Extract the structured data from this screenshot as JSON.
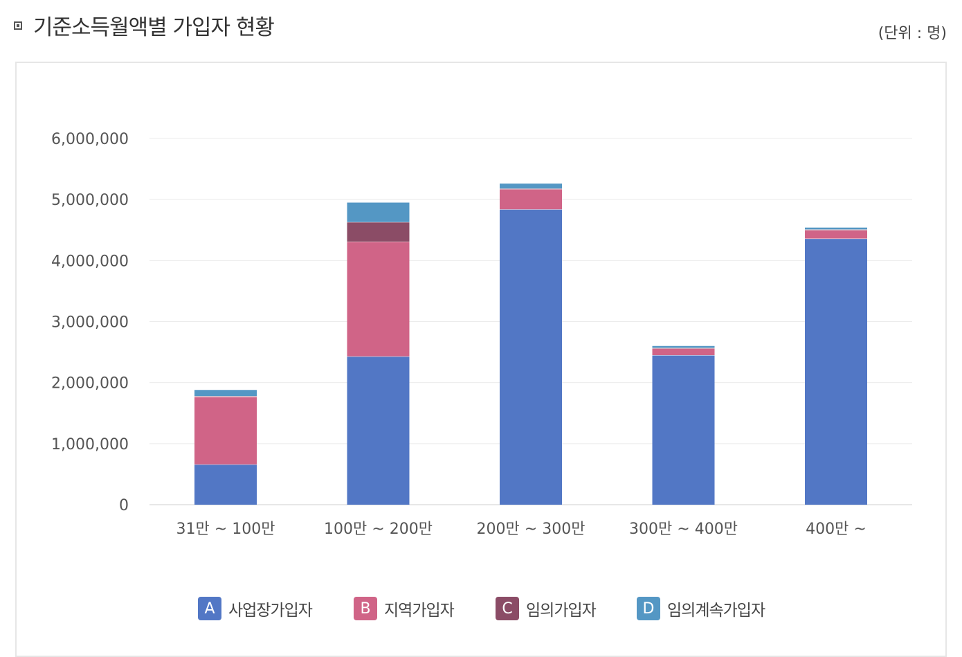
{
  "header": {
    "title": "기준소득월액별 가입자 현황",
    "unit": "(단위 : 명)"
  },
  "chart_data": {
    "type": "bar",
    "stacked": true,
    "categories": [
      "31만 ~ 100만",
      "100만 ~ 200만",
      "200만 ~ 300만",
      "300만 ~ 400만",
      "400만 ~"
    ],
    "ylim": [
      0,
      6000000
    ],
    "yticks": [
      "0",
      "1,000,000",
      "2,000,000",
      "3,000,000",
      "4,000,000",
      "5,000,000",
      "6,000,000"
    ],
    "ytick_values": [
      0,
      1000000,
      2000000,
      3000000,
      4000000,
      5000000,
      6000000
    ],
    "grid": true,
    "legend_position": "bottom",
    "series": [
      {
        "name": "사업장가입자",
        "badge": "A",
        "color": "#5277c5",
        "values": [
          660000,
          2430000,
          4840000,
          2450000,
          4360000
        ]
      },
      {
        "name": "지역가입자",
        "badge": "B",
        "color": "#d06487",
        "values": [
          1110000,
          1880000,
          330000,
          110000,
          140000
        ]
      },
      {
        "name": "임의가입자",
        "badge": "C",
        "color": "#8b4c66",
        "values": [
          10000,
          320000,
          10000,
          10000,
          10000
        ]
      },
      {
        "name": "임의계속가입자",
        "badge": "D",
        "color": "#5497c4",
        "values": [
          100000,
          320000,
          80000,
          30000,
          30000
        ]
      }
    ]
  }
}
